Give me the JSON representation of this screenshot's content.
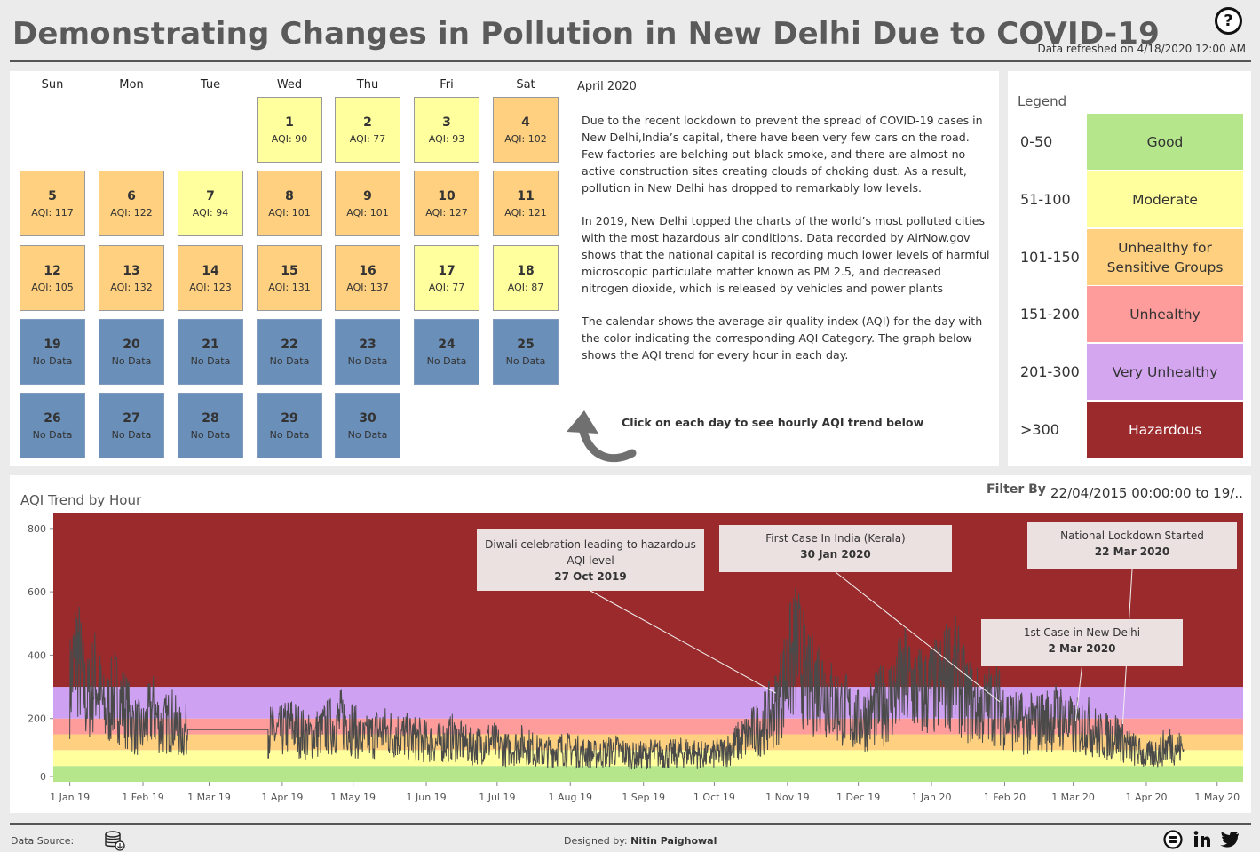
{
  "title": "Demonstrating Changes in Pollution in New Delhi Due to COVID-19",
  "refreshed": "Data refreshed on 4/18/2020 12:00 AM",
  "help_icon": "question-circle-icon",
  "calendar": {
    "weekdays": [
      "Sun",
      "Mon",
      "Tue",
      "Wed",
      "Thu",
      "Fri",
      "Sat"
    ],
    "month_label": "April 2020",
    "days": [
      {
        "day": "1",
        "text": "AQI: 90",
        "category": "moderate"
      },
      {
        "day": "2",
        "text": "AQI: 77",
        "category": "moderate"
      },
      {
        "day": "3",
        "text": "AQI: 93",
        "category": "moderate"
      },
      {
        "day": "4",
        "text": "AQI: 102",
        "category": "usg"
      },
      {
        "day": "5",
        "text": "AQI: 117",
        "category": "usg"
      },
      {
        "day": "6",
        "text": "AQI: 122",
        "category": "usg"
      },
      {
        "day": "7",
        "text": "AQI: 94",
        "category": "moderate"
      },
      {
        "day": "8",
        "text": "AQI: 101",
        "category": "usg"
      },
      {
        "day": "9",
        "text": "AQI: 101",
        "category": "usg"
      },
      {
        "day": "10",
        "text": "AQI: 127",
        "category": "usg"
      },
      {
        "day": "11",
        "text": "AQI: 121",
        "category": "usg"
      },
      {
        "day": "12",
        "text": "AQI: 105",
        "category": "usg"
      },
      {
        "day": "13",
        "text": "AQI: 132",
        "category": "usg"
      },
      {
        "day": "14",
        "text": "AQI: 123",
        "category": "usg"
      },
      {
        "day": "15",
        "text": "AQI: 131",
        "category": "usg"
      },
      {
        "day": "16",
        "text": "AQI: 137",
        "category": "usg"
      },
      {
        "day": "17",
        "text": "AQI: 77",
        "category": "moderate"
      },
      {
        "day": "18",
        "text": "AQI: 87",
        "category": "moderate"
      },
      {
        "day": "19",
        "text": "No Data",
        "category": "nodata"
      },
      {
        "day": "20",
        "text": "No Data",
        "category": "nodata"
      },
      {
        "day": "21",
        "text": "No Data",
        "category": "nodata"
      },
      {
        "day": "22",
        "text": "No Data",
        "category": "nodata"
      },
      {
        "day": "23",
        "text": "No Data",
        "category": "nodata"
      },
      {
        "day": "24",
        "text": "No Data",
        "category": "nodata"
      },
      {
        "day": "25",
        "text": "No Data",
        "category": "nodata"
      },
      {
        "day": "26",
        "text": "No Data",
        "category": "nodata"
      },
      {
        "day": "27",
        "text": "No Data",
        "category": "nodata"
      },
      {
        "day": "28",
        "text": "No Data",
        "category": "nodata"
      },
      {
        "day": "29",
        "text": "No Data",
        "category": "nodata"
      },
      {
        "day": "30",
        "text": "No Data",
        "category": "nodata"
      }
    ]
  },
  "description": [
    "Due to the recent lockdown to prevent the spread of COVID-19 cases in New Delhi,India’s capital, there have been very few cars on the road. Few factories are belching out black smoke, and there are almost no active construction sites creating clouds of choking dust. As a result, pollution in New Delhi has dropped to remarkably low levels.",
    "In 2019, New Delhi topped the charts of the world’s most polluted cities with the most hazardous air conditions. Data recorded by AirNow.gov shows that the national capital is recording much lower levels of harmful microscopic particulate matter known as PM 2.5, and decreased nitrogen dioxide, which is released by vehicles and power plants",
    "The calendar shows the average air quality index (AQI) for the day with the color indicating the corresponding AQI Category. The graph below shows the AQI trend for every hour in each day."
  ],
  "click_hint": "Click on each day to see hourly AQI trend below",
  "legend": {
    "title": "Legend",
    "items": [
      {
        "range": "0-50",
        "label": "Good",
        "color": "#b5e68c"
      },
      {
        "range": "51-100",
        "label": "Moderate",
        "color": "#ffff9e"
      },
      {
        "range": "101-150",
        "label": "Unhealthy for Sensitive Groups",
        "color": "#fed07f"
      },
      {
        "range": "151-200",
        "label": "Unhealthy",
        "color": "#fe9c9c"
      },
      {
        "range": "201-300",
        "label": "Very Unhealthy",
        "color": "#d4a6f0"
      },
      {
        "range": ">300",
        "label": "Hazardous",
        "color": "#9a2a2c"
      }
    ]
  },
  "colors": {
    "moderate": "#ffff9e",
    "usg": "#fed07f",
    "nodata": "#6a8fb8",
    "good": "#b5e68c",
    "unhealthy": "#fe9c9c",
    "very_unhealthy": "#cfa1f2",
    "hazardous": "#9a2a2c",
    "line": "#4a4a4a"
  },
  "trend": {
    "title": "AQI Trend by Hour",
    "filter_label": "Filter By",
    "filter_value": "22/04/2015 00:00:00 to 19/.."
  },
  "chart_data": {
    "type": "line",
    "title": "AQI Trend by Hour",
    "xlabel": "",
    "ylabel": "",
    "ylim": [
      0,
      850
    ],
    "y_ticks": [
      "0",
      "200",
      "400",
      "600",
      "800"
    ],
    "x_ticks": [
      "1 Jan 19",
      "1 Feb 19",
      "1 Mar 19",
      "1 Apr 19",
      "1 May 19",
      "1 Jun 19",
      "1 Jul 19",
      "1 Aug 19",
      "1 Sep 19",
      "1 Oct 19",
      "1 Nov 19",
      "1 Dec 19",
      "1 Jan 20",
      "1 Feb 20",
      "1 Mar 20",
      "1 Apr 20",
      "1 May 20"
    ],
    "x_range": [
      "2018-12-25",
      "2020-05-12"
    ],
    "bands": [
      {
        "from": 0,
        "to": 50,
        "category": "Good"
      },
      {
        "from": 50,
        "to": 100,
        "category": "Moderate"
      },
      {
        "from": 100,
        "to": 150,
        "category": "Unhealthy for Sensitive Groups"
      },
      {
        "from": 150,
        "to": 200,
        "category": "Unhealthy"
      },
      {
        "from": 200,
        "to": 300,
        "category": "Very Unhealthy"
      },
      {
        "from": 300,
        "to": 850,
        "category": "Hazardous"
      }
    ],
    "series": [
      {
        "x": [
          "2019-01-01",
          "2019-01-04",
          "2019-01-08",
          "2019-01-12",
          "2019-01-16",
          "2019-01-20",
          "2019-01-24",
          "2019-01-28",
          "2019-02-01",
          "2019-02-05",
          "2019-02-09",
          "2019-02-13",
          "2019-02-17",
          "2019-02-20",
          "2019-03-26",
          "2019-03-30",
          "2019-04-05",
          "2019-04-12",
          "2019-04-20",
          "2019-04-28",
          "2019-05-05",
          "2019-05-12",
          "2019-05-20",
          "2019-05-28",
          "2019-06-05",
          "2019-06-12",
          "2019-06-20",
          "2019-06-28",
          "2019-07-05",
          "2019-07-12",
          "2019-07-20",
          "2019-07-28",
          "2019-08-05",
          "2019-08-12",
          "2019-08-20",
          "2019-08-28",
          "2019-09-05",
          "2019-09-12",
          "2019-09-20",
          "2019-09-28",
          "2019-10-05",
          "2019-10-12",
          "2019-10-20",
          "2019-10-27",
          "2019-11-01",
          "2019-11-05",
          "2019-11-10",
          "2019-11-15",
          "2019-11-20",
          "2019-11-25",
          "2019-12-01",
          "2019-12-07",
          "2019-12-14",
          "2019-12-21",
          "2019-12-28",
          "2020-01-04",
          "2020-01-10",
          "2020-01-16",
          "2020-01-22",
          "2020-01-28",
          "2020-02-03",
          "2020-02-10",
          "2020-02-17",
          "2020-02-24",
          "2020-03-01",
          "2020-03-07",
          "2020-03-13",
          "2020-03-19",
          "2020-03-25",
          "2020-04-01",
          "2020-04-06",
          "2020-04-11",
          "2020-04-17"
        ],
        "values": [
          300,
          420,
          250,
          330,
          210,
          280,
          240,
          180,
          160,
          230,
          170,
          200,
          150,
          165,
          165,
          150,
          180,
          140,
          170,
          200,
          130,
          160,
          150,
          135,
          120,
          140,
          110,
          130,
          100,
          120,
          90,
          105,
          95,
          85,
          100,
          80,
          90,
          85,
          95,
          80,
          95,
          130,
          170,
          230,
          350,
          420,
          300,
          320,
          250,
          230,
          190,
          220,
          260,
          320,
          280,
          300,
          360,
          260,
          230,
          250,
          200,
          180,
          190,
          210,
          170,
          180,
          140,
          150,
          110,
          80,
          95,
          120,
          100
        ]
      }
    ],
    "annotations": [
      {
        "title": "Diwali celebration leading  to hazardous AQI level",
        "date": "27 Oct 2019"
      },
      {
        "title": "First Case In India (Kerala)",
        "date": "30 Jan 2020"
      },
      {
        "title": "National Lockdown Started",
        "date": "22 Mar 2020"
      },
      {
        "title": "1st Case in New Delhi",
        "date": "2 Mar 2020"
      }
    ],
    "grid": false
  },
  "footer": {
    "source_label": "Data Source:",
    "designed_label": "Designed by:",
    "designer": "Nitin Paighowal",
    "icons": [
      "database-icon",
      "blogger-icon",
      "linkedin-icon",
      "twitter-icon"
    ]
  }
}
